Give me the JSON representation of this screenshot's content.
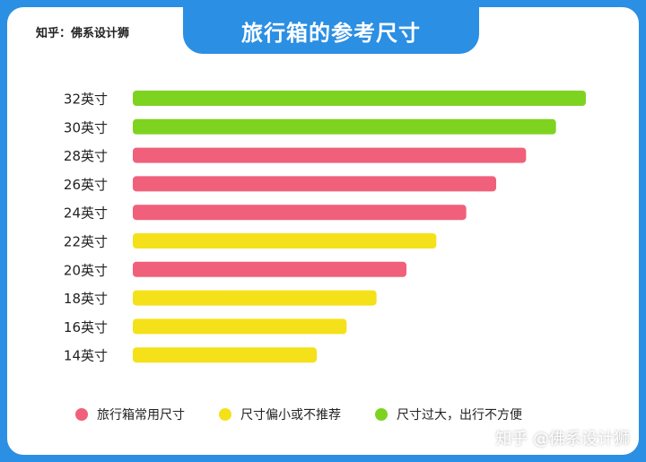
{
  "header": {
    "title": "旅行箱的参考尺寸",
    "brand": "知乎：佛系设计狮",
    "watermark": "知乎 @佛系设计狮"
  },
  "colors": {
    "common": "#f0607a",
    "small": "#f5e11a",
    "large": "#7ed321",
    "frame": "#2b8fe3"
  },
  "legend": [
    {
      "label": "旅行箱常用尺寸",
      "color": "#f0607a"
    },
    {
      "label": "尺寸偏小或不推荐",
      "color": "#f5e11a"
    },
    {
      "label": "尺寸过大，出行不方便",
      "color": "#7ed321"
    }
  ],
  "chart_data": {
    "type": "bar",
    "orientation": "horizontal",
    "categories": [
      "32英寸",
      "30英寸",
      "28英寸",
      "26英寸",
      "24英寸",
      "22英寸",
      "20英寸",
      "18英寸",
      "16英寸",
      "14英寸"
    ],
    "values": [
      32,
      30,
      28,
      26,
      24,
      22,
      20,
      18,
      16,
      14
    ],
    "category_class": [
      "large",
      "large",
      "common",
      "common",
      "common",
      "small",
      "common",
      "small",
      "small",
      "small"
    ],
    "title": "旅行箱的参考尺寸",
    "xlabel": "",
    "ylabel": "",
    "grid": false
  }
}
